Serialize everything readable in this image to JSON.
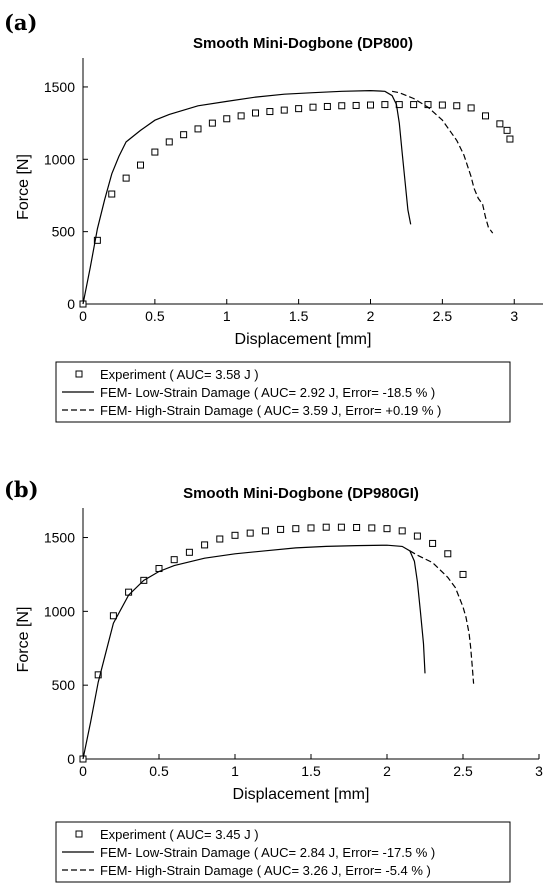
{
  "chart_data": [
    {
      "type": "scatter",
      "panel_label": "(a)",
      "title": "Smooth Mini-Dogbone (DP800)",
      "xlabel": "Displacement [mm]",
      "ylabel": "Force [N]",
      "xlim": [
        0,
        3.2
      ],
      "ylim": [
        0,
        1700
      ],
      "xticks": [
        "0",
        "0.5",
        "1",
        "1.5",
        "2",
        "2.5",
        "3"
      ],
      "yticks": [
        "0",
        "500",
        "1000",
        "1500"
      ],
      "grid": false,
      "legend_position": "below",
      "series": [
        {
          "name": "Experiment ( AUC= 3.58 J )",
          "style": "square-markers",
          "x": [
            0,
            0.1,
            0.2,
            0.3,
            0.4,
            0.5,
            0.6,
            0.7,
            0.8,
            0.9,
            1.0,
            1.1,
            1.2,
            1.3,
            1.4,
            1.5,
            1.6,
            1.7,
            1.8,
            1.9,
            2.0,
            2.1,
            2.2,
            2.3,
            2.4,
            2.5,
            2.6,
            2.7,
            2.8,
            2.9,
            2.95,
            2.97
          ],
          "y": [
            0,
            440,
            760,
            870,
            960,
            1050,
            1120,
            1170,
            1210,
            1250,
            1280,
            1300,
            1320,
            1330,
            1340,
            1350,
            1360,
            1365,
            1370,
            1372,
            1375,
            1378,
            1378,
            1378,
            1378,
            1375,
            1370,
            1355,
            1300,
            1245,
            1200,
            1140
          ]
        },
        {
          "name": "FEM- Low-Strain Damage ( AUC= 2.92 J, Error= -18.5 % )",
          "style": "solid",
          "x": [
            0,
            0.05,
            0.1,
            0.15,
            0.2,
            0.25,
            0.3,
            0.4,
            0.5,
            0.6,
            0.8,
            1.0,
            1.2,
            1.4,
            1.6,
            1.8,
            2.0,
            2.1,
            2.15,
            2.18,
            2.2,
            2.22,
            2.24,
            2.26,
            2.28
          ],
          "y": [
            0,
            250,
            520,
            720,
            900,
            1020,
            1120,
            1200,
            1270,
            1310,
            1370,
            1400,
            1430,
            1450,
            1460,
            1470,
            1475,
            1470,
            1440,
            1380,
            1250,
            1050,
            850,
            650,
            550
          ]
        },
        {
          "name": "FEM- High-Strain Damage ( AUC= 3.59 J, Error= +0.19 % )",
          "style": "dashed",
          "x": [
            2.15,
            2.2,
            2.3,
            2.4,
            2.5,
            2.6,
            2.65,
            2.7,
            2.72,
            2.75,
            2.78,
            2.8,
            2.82,
            2.85
          ],
          "y": [
            1470,
            1460,
            1420,
            1360,
            1270,
            1130,
            1030,
            880,
            800,
            730,
            690,
            600,
            530,
            490
          ]
        }
      ]
    },
    {
      "type": "scatter",
      "panel_label": "(b)",
      "title": "Smooth Mini-Dogbone (DP980GI)",
      "xlabel": "Displacement [mm]",
      "ylabel": "Force [N]",
      "xlim": [
        0,
        3
      ],
      "ylim": [
        0,
        1700
      ],
      "xticks": [
        "0",
        "0.5",
        "1",
        "1.5",
        "2",
        "2.5",
        "3"
      ],
      "yticks": [
        "0",
        "500",
        "1000",
        "1500"
      ],
      "grid": false,
      "legend_position": "below",
      "series": [
        {
          "name": "Experiment ( AUC= 3.45 J )",
          "style": "square-markers",
          "x": [
            0,
            0.1,
            0.2,
            0.3,
            0.4,
            0.5,
            0.6,
            0.7,
            0.8,
            0.9,
            1.0,
            1.1,
            1.2,
            1.3,
            1.4,
            1.5,
            1.6,
            1.7,
            1.8,
            1.9,
            2.0,
            2.1,
            2.2,
            2.3,
            2.4,
            2.5
          ],
          "y": [
            0,
            570,
            970,
            1130,
            1210,
            1290,
            1350,
            1400,
            1450,
            1490,
            1515,
            1530,
            1545,
            1555,
            1560,
            1565,
            1570,
            1570,
            1568,
            1565,
            1560,
            1545,
            1510,
            1460,
            1390,
            1250
          ]
        },
        {
          "name": "FEM- Low-Strain Damage ( AUC= 2.84 J, Error= -17.5 % )",
          "style": "solid",
          "x": [
            0,
            0.05,
            0.1,
            0.15,
            0.2,
            0.3,
            0.4,
            0.5,
            0.6,
            0.8,
            1.0,
            1.2,
            1.4,
            1.6,
            1.8,
            2.0,
            2.1,
            2.15,
            2.18,
            2.2,
            2.22,
            2.24,
            2.25
          ],
          "y": [
            0,
            250,
            520,
            720,
            920,
            1110,
            1210,
            1270,
            1310,
            1360,
            1390,
            1410,
            1430,
            1440,
            1445,
            1448,
            1440,
            1410,
            1340,
            1200,
            1000,
            780,
            580
          ]
        },
        {
          "name": "FEM- High-Strain Damage ( AUC= 3.26 J, Error= -5.4 % )",
          "style": "dashed",
          "x": [
            2.15,
            2.2,
            2.3,
            2.4,
            2.45,
            2.5,
            2.52,
            2.54,
            2.55,
            2.56,
            2.57
          ],
          "y": [
            1410,
            1380,
            1330,
            1230,
            1160,
            1030,
            960,
            850,
            760,
            640,
            510
          ]
        }
      ]
    }
  ]
}
